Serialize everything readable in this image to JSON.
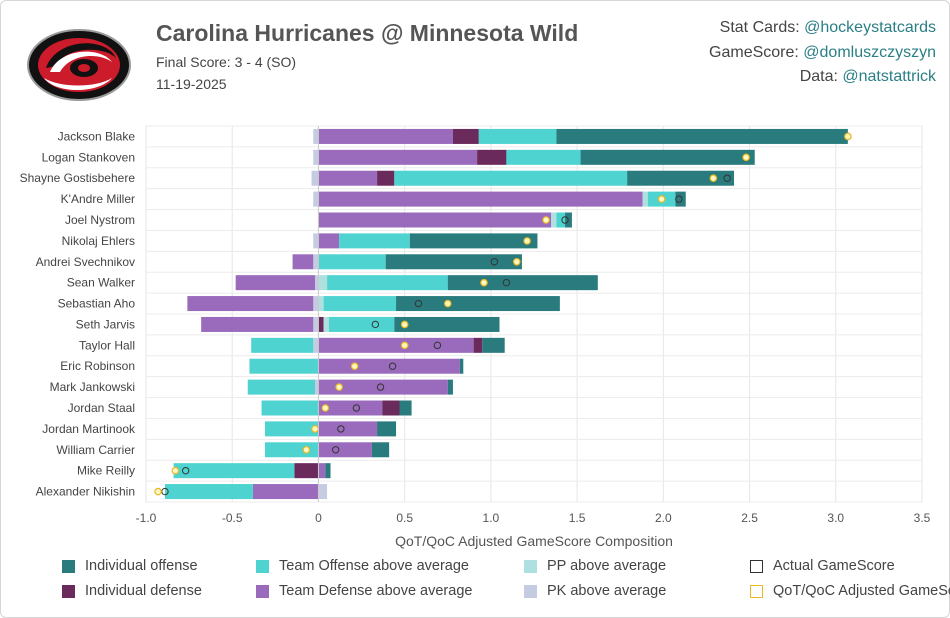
{
  "header": {
    "title": "Carolina Hurricanes @ Minnesota Wild",
    "score": "Final Score: 3 - 4 (SO)",
    "date": "11-19-2025"
  },
  "credits": [
    {
      "label": "Stat Cards: ",
      "handle": "@hockeystatcards"
    },
    {
      "label": "GameScore: ",
      "handle": "@domluszczyszyn"
    },
    {
      "label": "Data: ",
      "handle": "@natstattrick"
    }
  ],
  "colors": {
    "ind_off": "#2a7b7e",
    "ind_def": "#6b2a5c",
    "team_off": "#4fd3d0",
    "team_def": "#9a6bbd",
    "pp": "#aee0e0",
    "pk": "#c5cbe0",
    "actual_marker": "#333333",
    "adj_marker": "#e8b923"
  },
  "chart_data": {
    "type": "bar",
    "orientation": "horizontal-stacked",
    "title": "",
    "xlabel": "QoT/QoC Adjusted GameScore Composition",
    "ylabel": "",
    "xlim": [
      -1.0,
      3.5
    ],
    "xticks": [
      "-1.0",
      "-0.5",
      "0",
      "0.5",
      "1.0",
      "1.5",
      "2.0",
      "2.5",
      "3.0",
      "3.5"
    ],
    "xtick_values": [
      -1.0,
      -0.5,
      0,
      0.5,
      1.0,
      1.5,
      2.0,
      2.5,
      3.0,
      3.5
    ],
    "grid": true,
    "legend_position": "bottom",
    "series_order": [
      "team_def",
      "ind_def",
      "pp",
      "team_off",
      "ind_off"
    ],
    "legend": [
      {
        "key": "ind_off",
        "label": "Individual offense",
        "kind": "fill"
      },
      {
        "key": "team_off",
        "label": "Team Offense above average",
        "kind": "fill"
      },
      {
        "key": "pp",
        "label": "PP above average",
        "kind": "fill"
      },
      {
        "key": "actual",
        "label": "Actual GameScore",
        "kind": "outline"
      },
      {
        "key": "ind_def",
        "label": "Individual defense",
        "kind": "fill"
      },
      {
        "key": "team_def",
        "label": "Team Defense above average",
        "kind": "fill"
      },
      {
        "key": "pk",
        "label": "PK above average",
        "kind": "fill"
      },
      {
        "key": "adjusted",
        "label": "QoT/QoC Adjusted GameScore",
        "kind": "outline-gold"
      }
    ],
    "players": [
      {
        "name": "Jackson Blake",
        "pk": -0.03,
        "team_def": 0.78,
        "ind_def": 0.15,
        "pp": 0.0,
        "team_off": 0.45,
        "ind_off": 1.69,
        "actual": 3.07,
        "adjusted": 3.07
      },
      {
        "name": "Logan Stankoven",
        "pk": -0.03,
        "team_def": 0.92,
        "ind_def": 0.17,
        "pp": 0.0,
        "team_off": 0.43,
        "ind_off": 1.01,
        "actual": 2.48,
        "adjusted": 2.48
      },
      {
        "name": "Shayne Gostisbehere",
        "pk": -0.04,
        "team_def": 0.34,
        "ind_def": 0.1,
        "pp": 0.0,
        "team_off": 1.35,
        "ind_off": 0.62,
        "actual": 2.37,
        "adjusted": 2.29
      },
      {
        "name": "K'Andre Miller",
        "pk": -0.03,
        "team_def": 1.88,
        "ind_def": 0.0,
        "pp": 0.03,
        "team_off": 0.16,
        "ind_off": 0.06,
        "actual": 2.09,
        "adjusted": 1.99
      },
      {
        "name": "Joel Nystrom",
        "pk": 0.0,
        "team_def": 1.35,
        "ind_def": 0.0,
        "pp": 0.03,
        "team_off": 0.05,
        "ind_off": 0.04,
        "actual": 1.43,
        "adjusted": 1.32
      },
      {
        "name": "Nikolaj Ehlers",
        "pk": -0.03,
        "team_def": 0.12,
        "ind_def": 0.0,
        "pp": 0.0,
        "team_off": 0.41,
        "ind_off": 0.74,
        "actual": 1.21,
        "adjusted": 1.21
      },
      {
        "name": "Andrei Svechnikov",
        "pk": -0.03,
        "team_def": -0.12,
        "ind_def": 0.0,
        "pp": 0.0,
        "team_off": 0.39,
        "ind_off": 0.79,
        "actual": 1.02,
        "adjusted": 1.15
      },
      {
        "name": "Sean Walker",
        "pk": -0.02,
        "team_def": -0.46,
        "ind_def": 0.0,
        "pp": 0.05,
        "team_off": 0.7,
        "ind_off": 0.87,
        "actual": 1.09,
        "adjusted": 0.96
      },
      {
        "name": "Sebastian Aho",
        "pk": -0.03,
        "team_def": -0.73,
        "ind_def": 0.0,
        "pp": 0.03,
        "team_off": 0.42,
        "ind_off": 0.95,
        "actual": 0.58,
        "adjusted": 0.75
      },
      {
        "name": "Seth Jarvis",
        "pk": -0.03,
        "team_def": -0.65,
        "ind_def": 0.03,
        "pp": 0.03,
        "team_off": 0.38,
        "ind_off": 0.61,
        "actual": 0.33,
        "adjusted": 0.5
      },
      {
        "name": "Taylor Hall",
        "pk": -0.03,
        "team_def": 0.9,
        "ind_def": 0.05,
        "pp": 0.0,
        "team_off": -0.36,
        "ind_off": 0.13,
        "actual": 0.69,
        "adjusted": 0.5
      },
      {
        "name": "Eric Robinson",
        "pk": 0.0,
        "team_def": 0.82,
        "ind_def": 0.0,
        "pp": 0.0,
        "team_off": -0.4,
        "ind_off": 0.02,
        "actual": 0.43,
        "adjusted": 0.21
      },
      {
        "name": "Mark Jankowski",
        "pk": -0.02,
        "team_def": 0.75,
        "ind_def": 0.0,
        "pp": 0.0,
        "team_off": -0.39,
        "ind_off": 0.03,
        "actual": 0.36,
        "adjusted": 0.12
      },
      {
        "name": "Jordan Staal",
        "pk": 0.0,
        "team_def": 0.37,
        "ind_def": 0.1,
        "pp": 0.0,
        "team_off": -0.33,
        "ind_off": 0.07,
        "actual": 0.22,
        "adjusted": 0.04
      },
      {
        "name": "Jordan Martinook",
        "pk": 0.0,
        "team_def": 0.34,
        "ind_def": 0.0,
        "pp": 0.0,
        "team_off": -0.31,
        "ind_off": 0.11,
        "actual": 0.13,
        "adjusted": -0.02
      },
      {
        "name": "William Carrier",
        "pk": 0.0,
        "team_def": 0.31,
        "ind_def": 0.0,
        "pp": 0.0,
        "team_off": -0.31,
        "ind_off": 0.1,
        "actual": 0.1,
        "adjusted": -0.07
      },
      {
        "name": "Mike Reilly",
        "pk": 0.0,
        "team_def": 0.04,
        "ind_def": -0.14,
        "pp": 0.0,
        "team_off": -0.7,
        "ind_off": 0.03,
        "actual": -0.77,
        "adjusted": -0.83
      },
      {
        "name": "Alexander Nikishin",
        "pk": 0.05,
        "team_def": -0.38,
        "ind_def": 0.0,
        "pp": 0.0,
        "team_off": -0.51,
        "ind_off": 0.0,
        "actual": -0.89,
        "adjusted": -0.93
      }
    ]
  }
}
